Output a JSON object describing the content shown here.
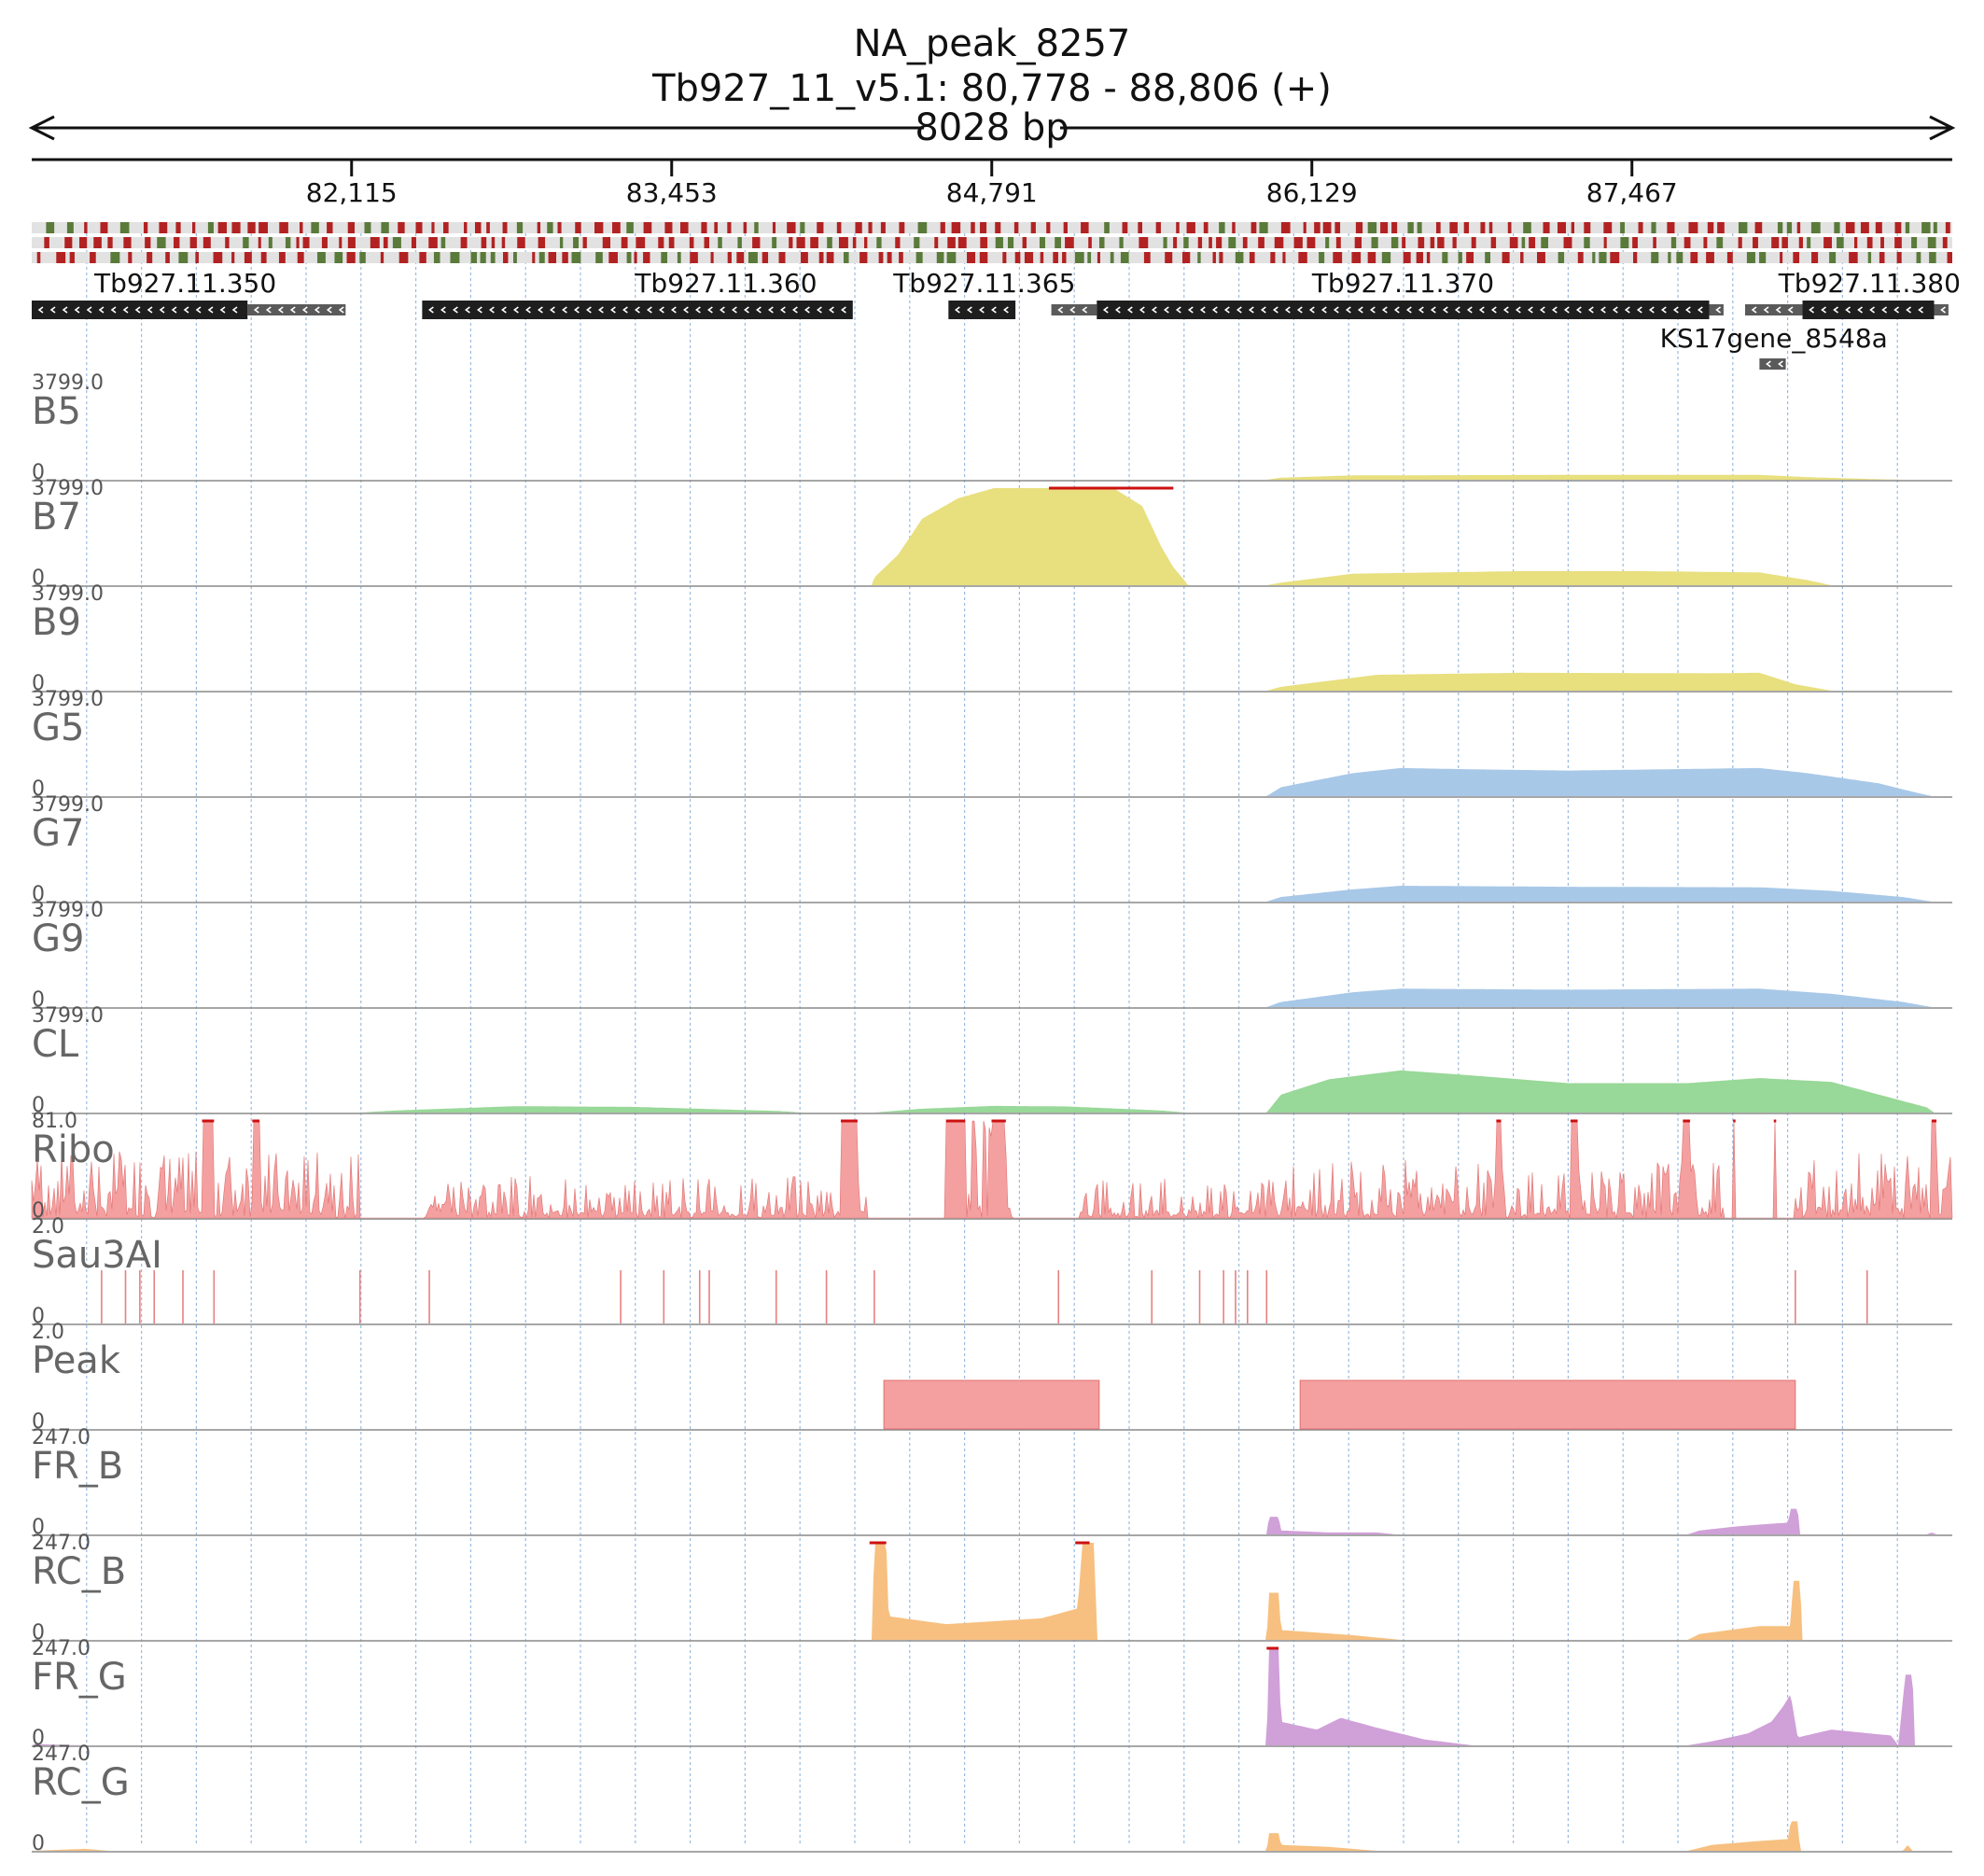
{
  "header": {
    "title": "NA_peak_8257",
    "subtitle": "Tb927_11_v5.1: 80,778 - 88,806 (+)",
    "span_label": "8028 bp"
  },
  "chart_data": {
    "type": "area",
    "title": "NA_peak_8257",
    "region": {
      "chrom": "Tb927_11_v5.1",
      "start": 80778,
      "end": 88806,
      "strand": "+"
    },
    "axis": {
      "xlim": [
        80778,
        88806
      ],
      "ticks": [
        82115,
        83453,
        84791,
        86129,
        87467
      ],
      "tick_labels": [
        "82,115",
        "83,453",
        "84,791",
        "86,129",
        "87,467"
      ],
      "grid": true
    },
    "codon_track": {
      "colors": [
        "#b22222",
        "#5a7a3a"
      ]
    },
    "genes": [
      {
        "name": "Tb927.11.350",
        "strand": "-",
        "cds": [
          [
            80778,
            81680
          ]
        ],
        "utr": [
          [
            81680,
            82090
          ]
        ],
        "label_pos": 81420
      },
      {
        "name": "Tb927.11.360",
        "strand": "-",
        "cds": [
          [
            82410,
            84210
          ]
        ],
        "utr": [],
        "label_pos": 83680
      },
      {
        "name": "Tb927.11.365",
        "strand": "-",
        "cds": [
          [
            84610,
            84890
          ]
        ],
        "utr": [],
        "label_pos": 84760
      },
      {
        "name": "Tb927.11.370",
        "strand": "-",
        "cds": [
          [
            85230,
            87790
          ]
        ],
        "utr": [
          [
            85040,
            85230
          ],
          [
            87790,
            87850
          ]
        ],
        "label_pos": 86510
      },
      {
        "name": "Tb927.11.380",
        "strand": "-",
        "cds": [
          [
            88180,
            88730
          ]
        ],
        "utr": [
          [
            87940,
            88180
          ],
          [
            88730,
            88790
          ]
        ],
        "label_pos": 88460
      },
      {
        "name": "KS17gene_8548a",
        "strand": "-",
        "cds": [],
        "utr": [
          [
            88000,
            88110
          ]
        ],
        "label_pos": 88060,
        "row": 2
      }
    ],
    "tracks": [
      {
        "name": "B5",
        "max": "3799.0",
        "min": "0",
        "ymax": 3799,
        "color": "#e8df7e",
        "points": [
          [
            85940,
            0
          ],
          [
            86000,
            80
          ],
          [
            86300,
            170
          ],
          [
            87200,
            190
          ],
          [
            88000,
            190
          ],
          [
            88200,
            100
          ],
          [
            88500,
            20
          ],
          [
            88600,
            0
          ]
        ]
      },
      {
        "name": "B7",
        "max": "3799.0",
        "min": "0",
        "ymax": 3799,
        "color": "#e8df7e",
        "overflow": [
          [
            85030,
            85550
          ]
        ],
        "points": [
          [
            84290,
            0
          ],
          [
            84300,
            300
          ],
          [
            84400,
            1200
          ],
          [
            84500,
            2600
          ],
          [
            84650,
            3400
          ],
          [
            84800,
            3799
          ],
          [
            85300,
            3799
          ],
          [
            85420,
            3100
          ],
          [
            85500,
            1500
          ],
          [
            85550,
            700
          ],
          [
            85600,
            150
          ],
          [
            85610,
            0
          ],
          [
            85940,
            0
          ],
          [
            86000,
            100
          ],
          [
            86300,
            450
          ],
          [
            87000,
            550
          ],
          [
            87500,
            550
          ],
          [
            88000,
            500
          ],
          [
            88200,
            200
          ],
          [
            88300,
            0
          ]
        ]
      },
      {
        "name": "B9",
        "max": "3799.0",
        "min": "0",
        "ymax": 3799,
        "color": "#e8df7e",
        "points": [
          [
            85940,
            0
          ],
          [
            86000,
            150
          ],
          [
            86400,
            620
          ],
          [
            87000,
            700
          ],
          [
            87800,
            680
          ],
          [
            88000,
            700
          ],
          [
            88150,
            250
          ],
          [
            88300,
            0
          ]
        ]
      },
      {
        "name": "G5",
        "max": "3799.0",
        "min": "0",
        "ymax": 3799,
        "color": "#a8c8e8",
        "points": [
          [
            85940,
            0
          ],
          [
            86000,
            350
          ],
          [
            86300,
            900
          ],
          [
            86500,
            1100
          ],
          [
            86800,
            1050
          ],
          [
            87200,
            1000
          ],
          [
            87600,
            1050
          ],
          [
            88000,
            1100
          ],
          [
            88200,
            900
          ],
          [
            88500,
            500
          ],
          [
            88650,
            150
          ],
          [
            88720,
            0
          ]
        ]
      },
      {
        "name": "G7",
        "max": "3799.0",
        "min": "0",
        "ymax": 3799,
        "color": "#a8c8e8",
        "points": [
          [
            85940,
            0
          ],
          [
            86000,
            180
          ],
          [
            86300,
            480
          ],
          [
            86500,
            620
          ],
          [
            87200,
            580
          ],
          [
            88000,
            560
          ],
          [
            88300,
            420
          ],
          [
            88600,
            180
          ],
          [
            88720,
            0
          ]
        ]
      },
      {
        "name": "G9",
        "max": "3799.0",
        "min": "0",
        "ymax": 3799,
        "color": "#a8c8e8",
        "points": [
          [
            85940,
            0
          ],
          [
            86000,
            200
          ],
          [
            86300,
            580
          ],
          [
            86500,
            720
          ],
          [
            87200,
            680
          ],
          [
            88000,
            720
          ],
          [
            88300,
            520
          ],
          [
            88600,
            200
          ],
          [
            88720,
            0
          ]
        ]
      },
      {
        "name": "CL",
        "max": "3799.0",
        "min": "0",
        "ymax": 3799,
        "color": "#98d898",
        "points": [
          [
            82150,
            0
          ],
          [
            82300,
            80
          ],
          [
            82800,
            250
          ],
          [
            83300,
            220
          ],
          [
            83900,
            60
          ],
          [
            84000,
            0
          ],
          [
            84300,
            0
          ],
          [
            84500,
            150
          ],
          [
            84800,
            260
          ],
          [
            85100,
            240
          ],
          [
            85500,
            80
          ],
          [
            85600,
            0
          ],
          [
            85940,
            0
          ],
          [
            86000,
            700
          ],
          [
            86200,
            1300
          ],
          [
            86500,
            1650
          ],
          [
            86800,
            1450
          ],
          [
            87200,
            1150
          ],
          [
            87700,
            1150
          ],
          [
            88000,
            1350
          ],
          [
            88300,
            1200
          ],
          [
            88500,
            700
          ],
          [
            88700,
            200
          ],
          [
            88730,
            0
          ]
        ]
      },
      {
        "name": "Ribo",
        "max": "81.0",
        "min": "0",
        "ymax": 81,
        "color": "#f4a0a0",
        "kind": "spiky",
        "seed": 7,
        "overflow": [
          [
            81490,
            81540
          ],
          [
            81700,
            81730
          ],
          [
            84160,
            84230
          ],
          [
            84600,
            84680
          ],
          [
            84790,
            84850
          ],
          [
            86900,
            86920
          ],
          [
            87890,
            87900
          ],
          [
            88060,
            88070
          ],
          [
            88720,
            88740
          ],
          [
            87210,
            87240
          ],
          [
            87680,
            87710
          ]
        ],
        "segments": [
          [
            80778,
            82150,
            40,
            0.6
          ],
          [
            82420,
            84270,
            25,
            0.5
          ],
          [
            84600,
            84880,
            70,
            0.8
          ],
          [
            85160,
            86000,
            25,
            0.5
          ],
          [
            86000,
            87850,
            35,
            0.6
          ],
          [
            88150,
            88800,
            40,
            0.6
          ]
        ]
      },
      {
        "name": "Sau3AI",
        "max": "2.0",
        "min": "0",
        "ymax": 2,
        "color": "#f4a0a0",
        "kind": "lines",
        "sites": [
          81070,
          81170,
          81230,
          81290,
          81410,
          81540,
          82150,
          82440,
          83240,
          83420,
          83570,
          83610,
          83890,
          84100,
          84300,
          85070,
          85460,
          85660,
          85760,
          85810,
          85860,
          85940,
          88150,
          88450
        ]
      },
      {
        "name": "Peak",
        "max": "2.0",
        "min": "0",
        "ymax": 2,
        "color": "#f4a0a0",
        "kind": "blocks",
        "blocks": [
          [
            84340,
            85240
          ],
          [
            86080,
            88150
          ]
        ],
        "block_height": 1
      },
      {
        "name": "FR_B",
        "max": "247.0",
        "min": "0",
        "ymax": 247,
        "color": "#d0a0d8",
        "points": [
          [
            85940,
            0
          ],
          [
            85950,
            45
          ],
          [
            85990,
            45
          ],
          [
            86000,
            10
          ],
          [
            86200,
            5
          ],
          [
            86400,
            5
          ],
          [
            86480,
            0
          ],
          [
            87700,
            0
          ],
          [
            87750,
            10
          ],
          [
            87900,
            20
          ],
          [
            88000,
            25
          ],
          [
            88120,
            30
          ],
          [
            88130,
            65
          ],
          [
            88160,
            65
          ],
          [
            88170,
            0
          ],
          [
            88700,
            0
          ],
          [
            88720,
            5
          ],
          [
            88740,
            0
          ]
        ]
      },
      {
        "name": "RC_B",
        "max": "247.0",
        "min": "0",
        "ymax": 247,
        "color": "#f7c080",
        "overflow": [
          [
            84280,
            84350
          ],
          [
            85140,
            85200
          ]
        ],
        "points": [
          [
            84290,
            0
          ],
          [
            84300,
            247
          ],
          [
            84350,
            247
          ],
          [
            84360,
            60
          ],
          [
            84600,
            40
          ],
          [
            85000,
            55
          ],
          [
            85150,
            80
          ],
          [
            85170,
            247
          ],
          [
            85220,
            247
          ],
          [
            85230,
            0
          ],
          [
            85940,
            0
          ],
          [
            85950,
            120
          ],
          [
            85990,
            120
          ],
          [
            86000,
            25
          ],
          [
            86300,
            12
          ],
          [
            86500,
            0
          ],
          [
            87700,
            0
          ],
          [
            87750,
            15
          ],
          [
            88000,
            35
          ],
          [
            88130,
            35
          ],
          [
            88140,
            150
          ],
          [
            88170,
            150
          ],
          [
            88180,
            0
          ]
        ]
      },
      {
        "name": "FR_G",
        "max": "247.0",
        "min": "0",
        "ymax": 247,
        "color": "#d0a0d8",
        "overflow": [
          [
            85940,
            85990
          ]
        ],
        "points": [
          [
            80778,
            0
          ],
          [
            80790,
            3
          ],
          [
            81000,
            0
          ],
          [
            85940,
            0
          ],
          [
            85950,
            247
          ],
          [
            85990,
            247
          ],
          [
            86000,
            60
          ],
          [
            86150,
            40
          ],
          [
            86250,
            70
          ],
          [
            86400,
            45
          ],
          [
            86600,
            15
          ],
          [
            86800,
            0
          ],
          [
            87700,
            0
          ],
          [
            87800,
            10
          ],
          [
            87950,
            30
          ],
          [
            88050,
            60
          ],
          [
            88100,
            100
          ],
          [
            88130,
            130
          ],
          [
            88160,
            20
          ],
          [
            88300,
            40
          ],
          [
            88550,
            25
          ],
          [
            88580,
            0
          ],
          [
            88610,
            180
          ],
          [
            88640,
            180
          ],
          [
            88650,
            0
          ]
        ]
      },
      {
        "name": "RC_G",
        "max": "247.0",
        "min": "0",
        "ymax": 247,
        "color": "#f7c080",
        "points": [
          [
            80778,
            0
          ],
          [
            81000,
            5
          ],
          [
            81100,
            0
          ],
          [
            85940,
            0
          ],
          [
            85950,
            45
          ],
          [
            85990,
            45
          ],
          [
            86000,
            15
          ],
          [
            86200,
            10
          ],
          [
            86400,
            0
          ],
          [
            87700,
            0
          ],
          [
            87800,
            15
          ],
          [
            88000,
            25
          ],
          [
            88120,
            30
          ],
          [
            88130,
            75
          ],
          [
            88160,
            75
          ],
          [
            88170,
            0
          ],
          [
            88600,
            0
          ],
          [
            88620,
            15
          ],
          [
            88640,
            0
          ]
        ]
      }
    ]
  }
}
